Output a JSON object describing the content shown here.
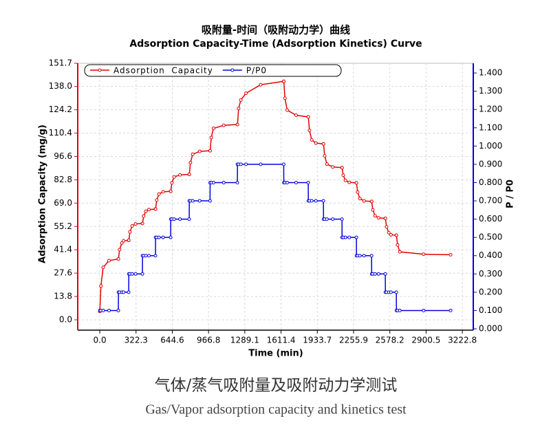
{
  "chart_data": {
    "type": "line",
    "title": "吸附量-时间（吸附动力学）曲线",
    "subtitle": "Adsorption Capacity-Time (Adsorption Kinetics) Curve",
    "xlabel": "Time (min)",
    "ylabel": "Adsorption Capacity (mg/g)",
    "y2label": "P / P0",
    "x": [
      0,
      10,
      30,
      82,
      165,
      166,
      176,
      196,
      211,
      257,
      258,
      268,
      288,
      318,
      379,
      380,
      390,
      410,
      437,
      495,
      496,
      506,
      526,
      563,
      630,
      631,
      641,
      661,
      713,
      795,
      796,
      806,
      826,
      888,
      980,
      981,
      991,
      1011,
      1102,
      1223,
      1224,
      1234,
      1254,
      1300,
      1430,
      1635,
      1636,
      1646,
      1666,
      1745,
      1853,
      1854,
      1864,
      1884,
      1921,
      1988,
      1989,
      1999,
      2019,
      2071,
      2153,
      2154,
      2164,
      2184,
      2218,
      2281,
      2282,
      2292,
      2312,
      2349,
      2416,
      2417,
      2427,
      2447,
      2478,
      2538,
      2539,
      2549,
      2569,
      2588,
      2636,
      2637,
      2647,
      2667,
      2878,
      3119
    ],
    "series": [
      {
        "name": "Adsorption  Capacity",
        "color": "#e00000",
        "values": [
          5,
          20,
          31,
          35,
          36,
          36,
          41.5,
          45.4,
          46.7,
          47,
          47,
          52,
          55.5,
          56.7,
          57,
          57,
          61.3,
          64.2,
          65.2,
          65.5,
          65.5,
          70.8,
          74.4,
          75.7,
          76,
          76,
          81,
          84.5,
          85.7,
          86,
          86,
          93,
          97.9,
          99.6,
          100,
          100,
          107.8,
          113.2,
          115,
          115.5,
          115.5,
          125,
          130,
          134,
          139,
          141,
          141,
          131,
          124,
          121,
          120,
          120,
          112,
          106.4,
          104.5,
          104,
          104,
          97,
          92.1,
          90.4,
          90,
          90,
          85.5,
          82.4,
          81.3,
          81,
          81,
          75.5,
          71.7,
          70.3,
          70,
          70,
          65,
          61.5,
          60.3,
          60,
          60,
          55,
          51.5,
          50.3,
          50,
          50,
          44.3,
          40.2,
          38.8,
          38.5
        ]
      },
      {
        "name": "P/P0",
        "color": "#0000e0",
        "axis": "y2",
        "values": [
          0.1,
          0.1,
          0.1,
          0.1,
          0.1,
          0.2,
          0.2,
          0.2,
          0.2,
          0.2,
          0.3,
          0.3,
          0.3,
          0.3,
          0.3,
          0.4,
          0.4,
          0.4,
          0.4,
          0.4,
          0.5,
          0.5,
          0.5,
          0.5,
          0.5,
          0.6,
          0.6,
          0.6,
          0.6,
          0.6,
          0.7,
          0.7,
          0.7,
          0.7,
          0.7,
          0.8,
          0.8,
          0.8,
          0.8,
          0.8,
          0.9,
          0.9,
          0.9,
          0.9,
          0.9,
          0.9,
          0.8,
          0.8,
          0.8,
          0.8,
          0.8,
          0.7,
          0.7,
          0.7,
          0.7,
          0.7,
          0.6,
          0.6,
          0.6,
          0.6,
          0.6,
          0.5,
          0.5,
          0.5,
          0.5,
          0.5,
          0.4,
          0.4,
          0.4,
          0.4,
          0.4,
          0.3,
          0.3,
          0.3,
          0.3,
          0.3,
          0.2,
          0.2,
          0.2,
          0.2,
          0.2,
          0.1,
          0.1,
          0.1,
          0.1,
          0.1
        ]
      }
    ],
    "xlim": [
      -196,
      3320
    ],
    "xticks": [
      {
        "value": 0,
        "label": "0.0"
      },
      322.3,
      644.6,
      966.8,
      1289.1,
      1611.4,
      1933.7,
      2255.9,
      2578.2,
      2900.5,
      3222.8
    ],
    "ylim": [
      -6.1,
      151.7
    ],
    "yticks": [
      {
        "value": 0,
        "label": "0.0"
      },
      13.8,
      27.6,
      41.4,
      55.2,
      {
        "value": 69,
        "label": "69.0"
      },
      82.8,
      96.6,
      110.4,
      124.2,
      {
        "value": 138,
        "label": "138.0"
      },
      151.7
    ],
    "y2lim": [
      -0.0075,
      1.453
    ],
    "y2ticks": [
      {
        "value": 0,
        "label": "0.000"
      },
      {
        "value": 0.1,
        "label": "0.100"
      },
      {
        "value": 0.2,
        "label": "0.200"
      },
      {
        "value": 0.3,
        "label": "0.300"
      },
      {
        "value": 0.4,
        "label": "0.400"
      },
      {
        "value": 0.5,
        "label": "0.500"
      },
      {
        "value": 0.6,
        "label": "0.600"
      },
      {
        "value": 0.7,
        "label": "0.700"
      },
      {
        "value": 0.8,
        "label": "0.800"
      },
      {
        "value": 0.9,
        "label": "0.900"
      },
      {
        "value": 1.0,
        "label": "1.000"
      },
      {
        "value": 1.1,
        "label": "1.100"
      },
      {
        "value": 1.2,
        "label": "1.200"
      },
      {
        "value": 1.3,
        "label": "1.300"
      },
      {
        "value": 1.4,
        "label": "1.400"
      }
    ],
    "grid": true,
    "legend": "upper left"
  },
  "caption": {
    "title": "气体/蒸气吸附量及吸附动力学测试",
    "subtitle": "Gas/Vapor adsorption capacity and kinetics test"
  }
}
